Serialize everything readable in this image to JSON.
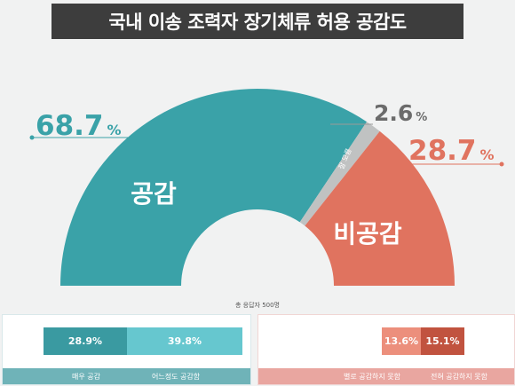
{
  "title": "국내 이송 조력자 장기체류 허용 공감도",
  "respondents_note": "총 응답자 500명",
  "colors": {
    "agree": "#3aa2a8",
    "disagree": "#e0735f",
    "unsure": "#c0c2c2",
    "agree_strong": "#3a9aa1",
    "agree_mild": "#66c7cf",
    "disagree_mild": "#ec8f7c",
    "disagree_strong": "#c1533f"
  },
  "chart_data": {
    "type": "pie",
    "shape": "half-donut",
    "slices": [
      {
        "label": "공감",
        "value": 68.7,
        "display": "68.7",
        "unit": "%"
      },
      {
        "label": "잘 모름",
        "value": 2.6,
        "display": "2.6",
        "unit": "%"
      },
      {
        "label": "비공감",
        "value": 28.7,
        "display": "28.7",
        "unit": "%"
      }
    ]
  },
  "breakdown": {
    "agree": [
      {
        "label": "매우 공감",
        "value": 28.9,
        "display": "28.9%"
      },
      {
        "label": "어느정도 공감함",
        "value": 39.8,
        "display": "39.8%"
      }
    ],
    "disagree": [
      {
        "label": "별로 공감하지 못함",
        "value": 13.6,
        "display": "13.6%"
      },
      {
        "label": "전혀 공감하지 못함",
        "value": 15.1,
        "display": "15.1%"
      }
    ]
  }
}
